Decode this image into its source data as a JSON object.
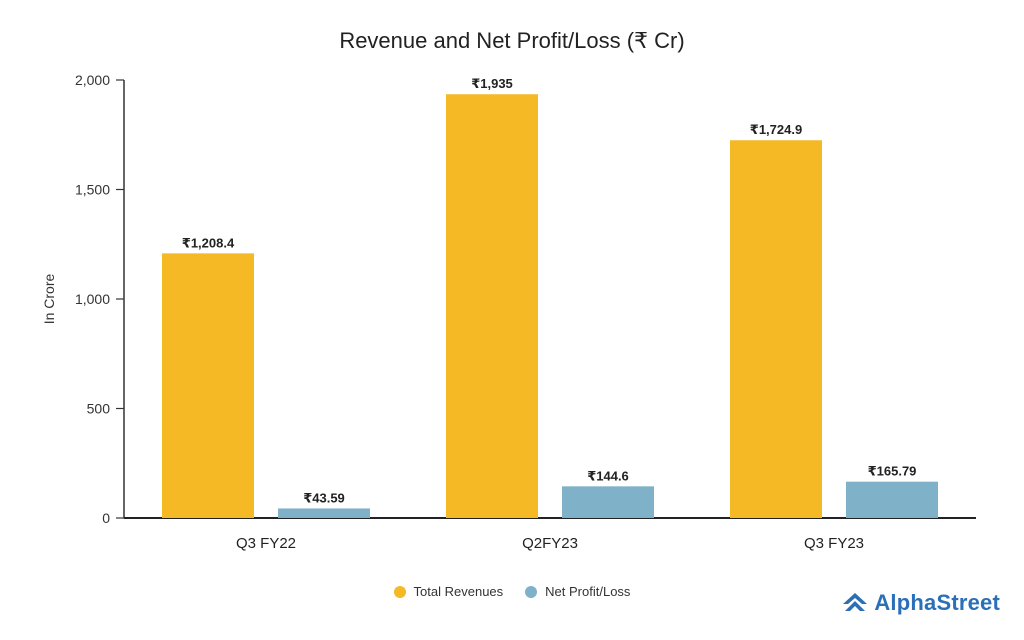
{
  "chart_data": {
    "type": "bar",
    "title": "Revenue and Net Profit/Loss (₹ Cr)",
    "ylabel": "In Crore",
    "xlabel": "",
    "ylim": [
      0,
      2000
    ],
    "yticks": [
      "0",
      "500",
      "1,000",
      "1,500",
      "2,000"
    ],
    "categories": [
      "Q3 FY22",
      "Q2FY23",
      "Q3 FY23"
    ],
    "series": [
      {
        "name": "Total Revenues",
        "color": "#f6b926",
        "values": [
          1208.4,
          1935,
          1724.9
        ],
        "labels": [
          "₹1,208.4",
          "₹1,935",
          "₹1,724.9"
        ]
      },
      {
        "name": "Net Profit/Loss",
        "color": "#7fb1c9",
        "values": [
          43.59,
          144.6,
          165.79
        ],
        "labels": [
          "₹43.59",
          "₹144.6",
          "₹165.79"
        ]
      }
    ],
    "grid": false,
    "legend_position": "bottom"
  },
  "brand": {
    "name": "AlphaStreet",
    "color": "#2a6fb7",
    "icon": "alphastreet-logo-icon"
  }
}
